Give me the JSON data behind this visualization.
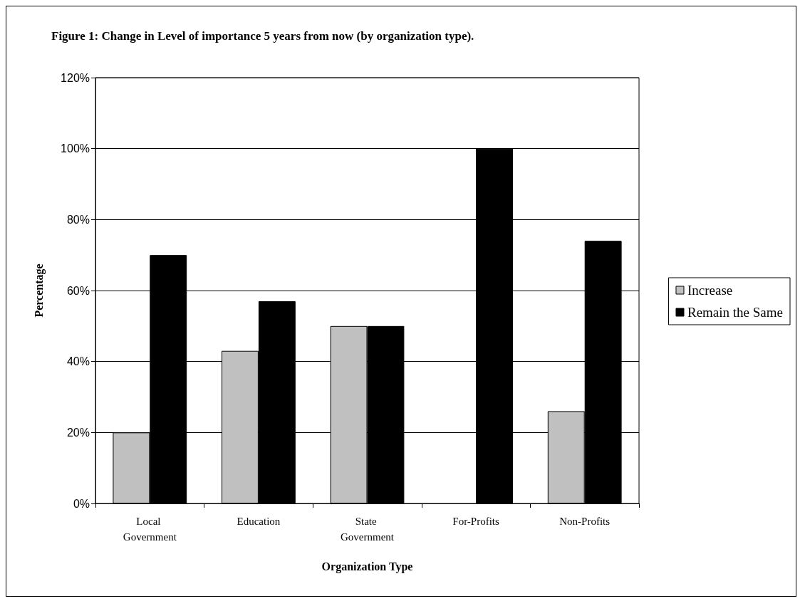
{
  "chart_data": {
    "type": "bar",
    "title": "Figure 1: Change in Level of importance 5 years from now (by organization type).",
    "xlabel": "Organization Type",
    "ylabel": "Percentage",
    "categories": [
      "Local Government",
      "Education",
      "State Government",
      "For-Profits",
      "Non-Profits"
    ],
    "series": [
      {
        "name": "Increase",
        "color": "#c0c0c0",
        "values": [
          20,
          43,
          50,
          0,
          26
        ]
      },
      {
        "name": "Remain the Same",
        "color": "#000000",
        "values": [
          70,
          57,
          50,
          100,
          74
        ]
      }
    ],
    "ylim": [
      0,
      120
    ],
    "yticks": [
      {
        "value": 0,
        "label": "0%"
      },
      {
        "value": 20,
        "label": "20%"
      },
      {
        "value": 40,
        "label": "40%"
      },
      {
        "value": 60,
        "label": "60%"
      },
      {
        "value": 80,
        "label": "80%"
      },
      {
        "value": 100,
        "label": "100%"
      },
      {
        "value": 120,
        "label": "120%"
      }
    ],
    "grid": "y",
    "legend": "right"
  }
}
